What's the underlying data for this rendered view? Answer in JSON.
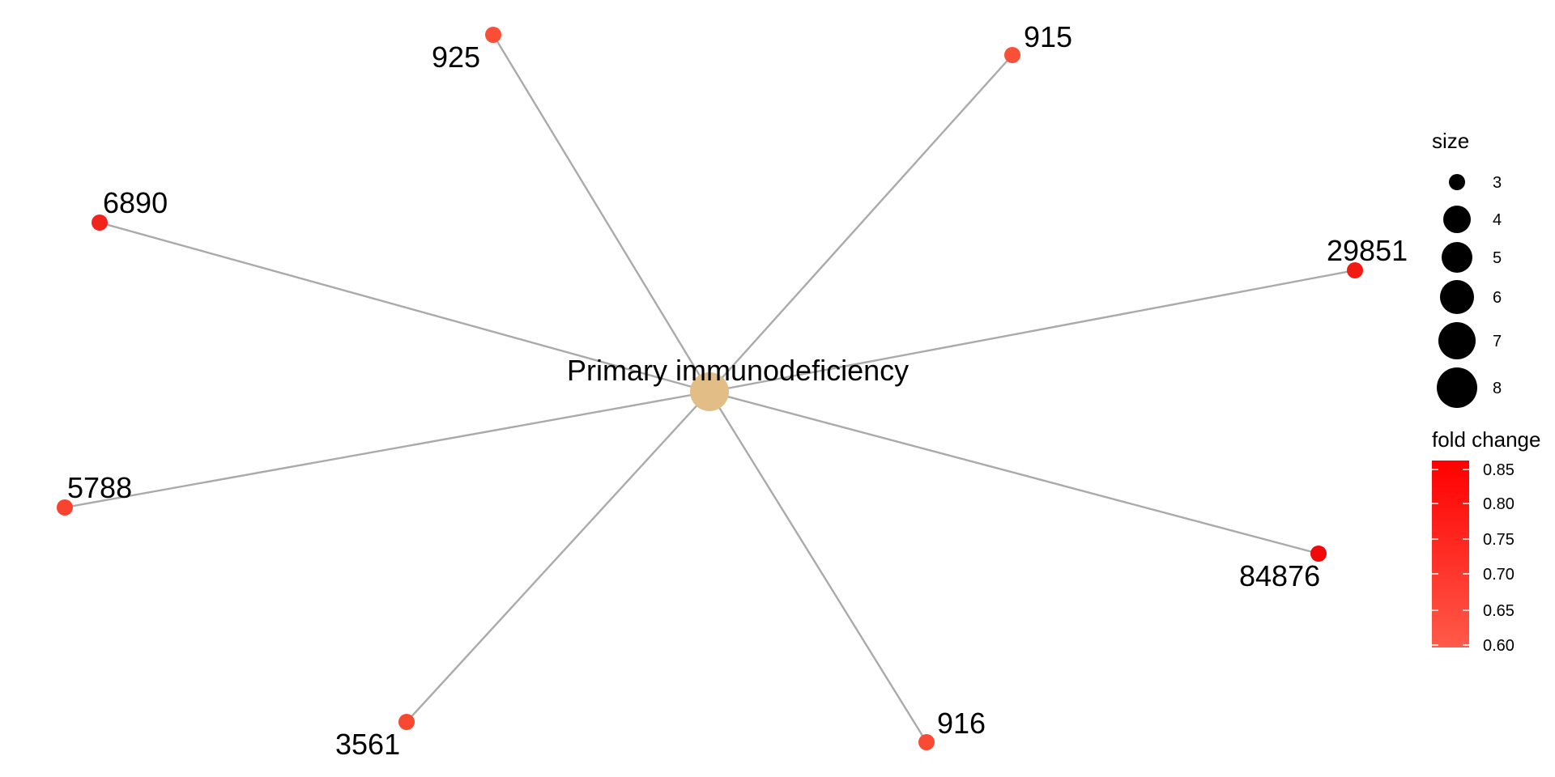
{
  "network": {
    "center": {
      "label": "Primary immunodeficiency",
      "color": "#E2BD86"
    },
    "leaves": [
      {
        "label": "925",
        "color": "#FA4E37"
      },
      {
        "label": "915",
        "color": "#FA5038"
      },
      {
        "label": "6890",
        "color": "#F2221C"
      },
      {
        "label": "29851",
        "color": "#F41A14"
      },
      {
        "label": "5788",
        "color": "#F8432E"
      },
      {
        "label": "84876",
        "color": "#F20A0A"
      },
      {
        "label": "3561",
        "color": "#F8482F"
      },
      {
        "label": "916",
        "color": "#F94A34"
      }
    ],
    "edge_color": "#AAAAAA"
  },
  "legend": {
    "size": {
      "title": "size",
      "items": [
        "3",
        "4",
        "5",
        "6",
        "7",
        "8"
      ]
    },
    "color": {
      "title": "fold change",
      "ticks": [
        "0.85",
        "0.80",
        "0.75",
        "0.70",
        "0.65",
        "0.60"
      ],
      "low_color": "#FF5A4A",
      "high_color": "#FF0000"
    }
  }
}
